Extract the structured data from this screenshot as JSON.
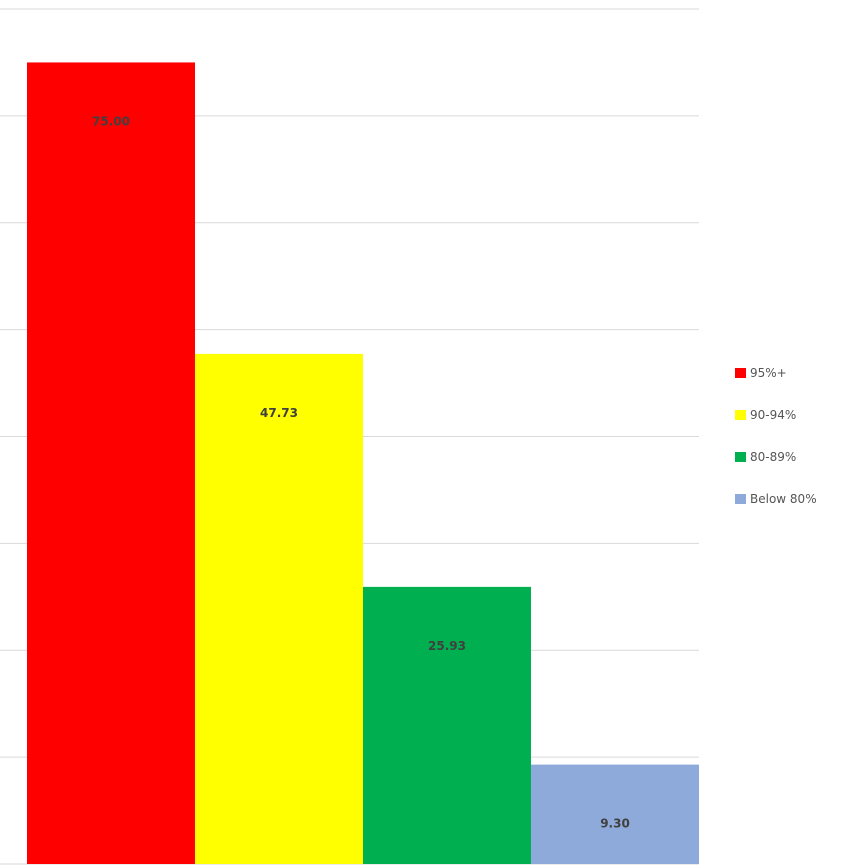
{
  "chart_data": {
    "type": "bar",
    "title": "",
    "xlabel": "",
    "ylabel": "",
    "grid": true,
    "legend_placement": "right",
    "ylim": [
      0,
      80
    ],
    "categories": [
      "95%+",
      "90-94%",
      "80-89%",
      "Below 80%"
    ],
    "values": [
      75.0,
      47.73,
      25.93,
      9.3
    ],
    "data_labels": [
      "75.00",
      "47.73",
      "25.93",
      "9.30"
    ],
    "series": [
      {
        "name": "95%+",
        "value": 75.0,
        "color": "#ff0000"
      },
      {
        "name": "90-94%",
        "value": 47.73,
        "color": "#ffff00"
      },
      {
        "name": "80-89%",
        "value": 25.93,
        "color": "#00b050"
      },
      {
        "name": "Below 80%",
        "value": 9.3,
        "color": "#8eaadb"
      }
    ]
  },
  "legend": {
    "items": [
      {
        "label": "95%+",
        "color": "#ff0000"
      },
      {
        "label": "90-94%",
        "color": "#ffff00"
      },
      {
        "label": "80-89%",
        "color": "#00b050"
      },
      {
        "label": "Below 80%",
        "color": "#8eaadb"
      }
    ]
  }
}
